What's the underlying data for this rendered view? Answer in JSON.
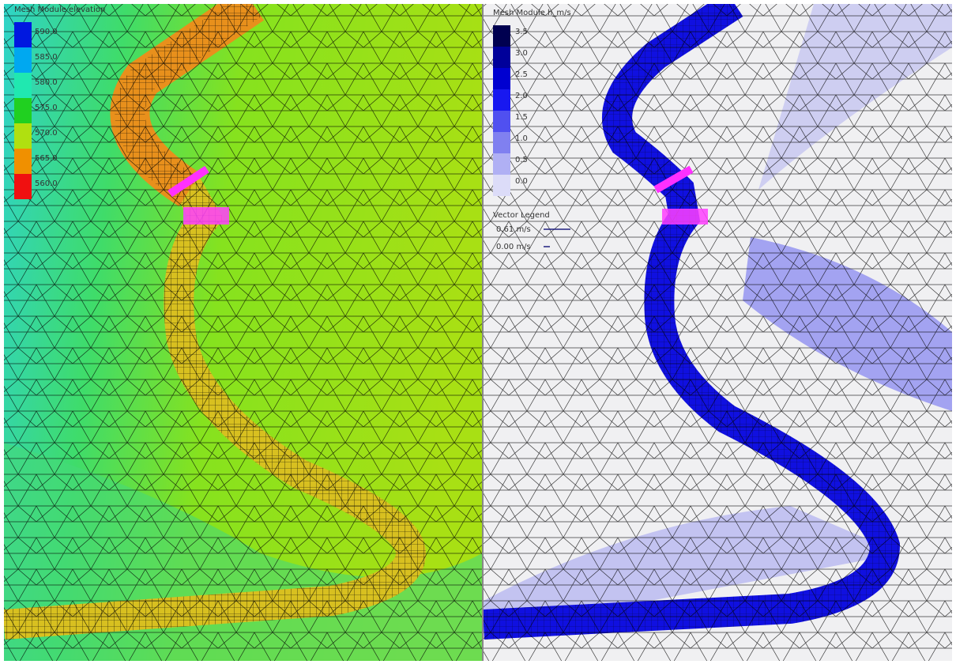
{
  "left_panel": {
    "legend_title": "Mesh Module elevation",
    "legend_labels": [
      "590.0",
      "585.0",
      "580.0",
      "575.0",
      "570.0",
      "565.0",
      "560.0"
    ]
  },
  "right_panel": {
    "legend_title": "Mesh Module h_m/s",
    "legend_labels": [
      "3.5",
      "3.0",
      "2.5",
      "2.0",
      "1.5",
      "1.0",
      "0.5",
      "0.0"
    ],
    "vector_legend": {
      "title": "Vector Legend",
      "labels": [
        "0.61 m/s",
        "0.00 m/s"
      ]
    }
  }
}
